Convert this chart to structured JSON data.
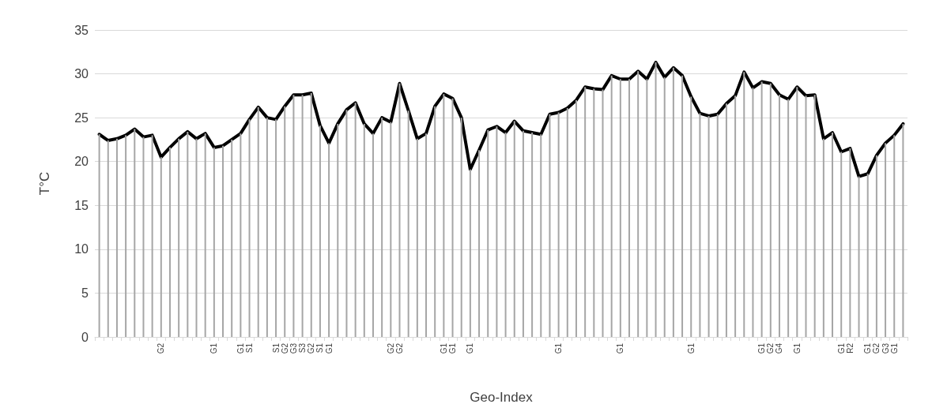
{
  "chart_data": {
    "type": "line",
    "xlabel": "Geo-Index",
    "ylabel": "T°C",
    "categories": [
      null,
      null,
      null,
      null,
      null,
      null,
      null,
      "G2",
      null,
      null,
      null,
      null,
      null,
      "G1",
      null,
      null,
      "G1",
      "S1",
      null,
      null,
      "S1",
      "G2",
      "G3",
      "S3",
      "G2",
      "S1",
      "G1",
      null,
      null,
      null,
      null,
      null,
      null,
      "G2",
      "G2",
      null,
      null,
      null,
      null,
      "G1",
      "G1",
      null,
      "G1",
      null,
      null,
      null,
      null,
      null,
      null,
      null,
      null,
      null,
      "G1",
      null,
      null,
      null,
      null,
      null,
      null,
      "G1",
      null,
      null,
      null,
      null,
      null,
      null,
      null,
      "G1",
      null,
      null,
      null,
      null,
      null,
      null,
      null,
      "G1",
      "G2",
      "G4",
      null,
      "G1",
      null,
      null,
      null,
      null,
      "G1",
      "R2",
      null,
      "G1",
      "G2",
      "G3",
      "G1",
      null
    ],
    "series": [
      {
        "type": "bar",
        "color": "#a6a6a6",
        "values": [
          23.1,
          22.4,
          22.6,
          23.0,
          23.7,
          22.8,
          23.0,
          20.5,
          21.6,
          22.6,
          23.4,
          22.6,
          23.2,
          21.6,
          21.8,
          22.5,
          23.2,
          24.8,
          26.2,
          25.0,
          24.8,
          26.3,
          27.6,
          27.6,
          27.8,
          24.1,
          22.1,
          24.3,
          25.9,
          26.7,
          24.3,
          23.2,
          25.0,
          24.5,
          28.9,
          25.8,
          22.6,
          23.2,
          26.3,
          27.7,
          27.2,
          25.0,
          19.1,
          21.3,
          23.6,
          24.0,
          23.3,
          24.6,
          23.5,
          23.3,
          23.1,
          25.4,
          25.6,
          26.1,
          27.0,
          28.5,
          28.3,
          28.2,
          29.8,
          29.4,
          29.4,
          30.3,
          29.4,
          31.3,
          29.6,
          30.7,
          29.8,
          27.4,
          25.5,
          25.2,
          25.4,
          26.6,
          27.5,
          30.2,
          28.4,
          29.1,
          28.9,
          27.6,
          27.1,
          28.5,
          27.5,
          27.6,
          22.6,
          23.3,
          21.1,
          21.5,
          18.3,
          18.6,
          20.7,
          22.1,
          23.0,
          24.3
        ]
      },
      {
        "color": "#000000",
        "values": [
          23.1,
          22.4,
          22.6,
          23.0,
          23.7,
          22.8,
          23.0,
          20.5,
          21.6,
          22.6,
          23.4,
          22.6,
          23.2,
          21.6,
          21.8,
          22.5,
          23.2,
          24.8,
          26.2,
          25.0,
          24.8,
          26.3,
          27.6,
          27.6,
          27.8,
          24.1,
          22.1,
          24.3,
          25.9,
          26.7,
          24.3,
          23.2,
          25.0,
          24.5,
          28.9,
          25.8,
          22.6,
          23.2,
          26.3,
          27.7,
          27.2,
          25.0,
          19.1,
          21.3,
          23.6,
          24.0,
          23.3,
          24.6,
          23.5,
          23.3,
          23.1,
          25.4,
          25.6,
          26.1,
          27.0,
          28.5,
          28.3,
          28.2,
          29.8,
          29.4,
          29.4,
          30.3,
          29.4,
          31.3,
          29.6,
          30.7,
          29.8,
          27.4,
          25.5,
          25.2,
          25.4,
          26.6,
          27.5,
          30.2,
          28.4,
          29.1,
          28.9,
          27.6,
          27.1,
          28.5,
          27.5,
          27.6,
          22.6,
          23.3,
          21.1,
          21.5,
          18.3,
          18.6,
          20.7,
          22.1,
          23.0,
          24.3
        ]
      }
    ],
    "ylim": [
      0,
      35
    ],
    "yticks": [
      0,
      5,
      10,
      15,
      20,
      25,
      30,
      35
    ],
    "grid": "y",
    "marker": "none",
    "line_style": "solid"
  }
}
